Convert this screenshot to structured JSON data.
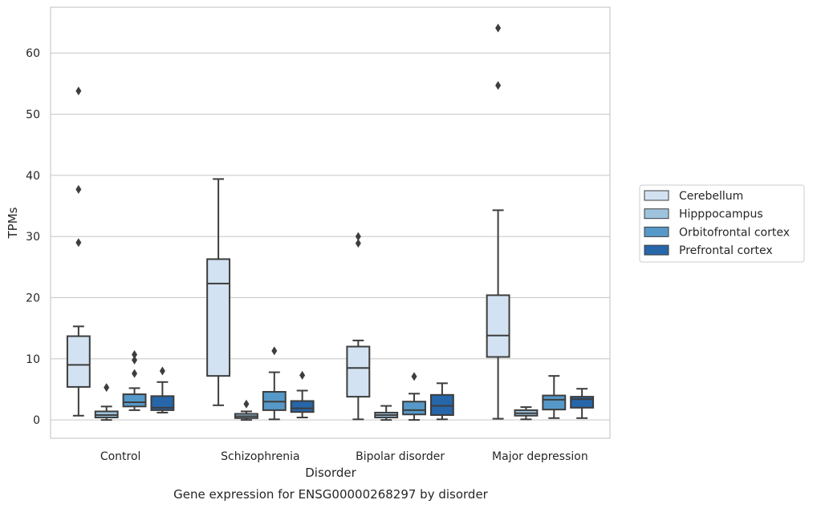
{
  "chart_data": {
    "type": "box",
    "xlabel": "Disorder",
    "ylabel": "TPMs",
    "caption": "Gene expression for ENSG00000268297 by disorder",
    "ylim": [
      -3,
      67.5
    ],
    "yticks": [
      0,
      10,
      20,
      30,
      40,
      50,
      60
    ],
    "grid": "horizontal",
    "legend_position": "right",
    "categories": [
      "Control",
      "Schizophrenia",
      "Bipolar disorder",
      "Major depression"
    ],
    "series": [
      {
        "name": "Cerebellum",
        "color": "#d2e2f2",
        "boxes": [
          {
            "whislo": 0.7,
            "q1": 5.4,
            "med": 9.0,
            "q3": 13.7,
            "whishi": 15.3,
            "fliers": [
              29.0,
              37.7,
              53.8
            ]
          },
          {
            "whislo": 2.4,
            "q1": 7.2,
            "med": 22.3,
            "q3": 26.3,
            "whishi": 39.4,
            "fliers": []
          },
          {
            "whislo": 0.1,
            "q1": 3.8,
            "med": 8.5,
            "q3": 12.0,
            "whishi": 13.0,
            "fliers": [
              28.9,
              30.0
            ]
          },
          {
            "whislo": 0.2,
            "q1": 10.3,
            "med": 13.8,
            "q3": 20.4,
            "whishi": 34.3,
            "fliers": [
              54.7,
              64.1
            ]
          }
        ]
      },
      {
        "name": "Hipppocampus",
        "color": "#9dc3dd",
        "boxes": [
          {
            "whislo": 0.0,
            "q1": 0.4,
            "med": 0.8,
            "q3": 1.4,
            "whishi": 2.2,
            "fliers": [
              5.3
            ]
          },
          {
            "whislo": 0.0,
            "q1": 0.3,
            "med": 0.6,
            "q3": 1.0,
            "whishi": 1.4,
            "fliers": [
              2.6
            ]
          },
          {
            "whislo": 0.0,
            "q1": 0.4,
            "med": 0.8,
            "q3": 1.2,
            "whishi": 2.3,
            "fliers": []
          },
          {
            "whislo": 0.1,
            "q1": 0.7,
            "med": 1.1,
            "q3": 1.6,
            "whishi": 2.1,
            "fliers": []
          }
        ]
      },
      {
        "name": "Orbitofrontal cortex",
        "color": "#5699c9",
        "boxes": [
          {
            "whislo": 1.6,
            "q1": 2.2,
            "med": 2.9,
            "q3": 4.2,
            "whishi": 5.2,
            "fliers": [
              7.6,
              9.8,
              10.7
            ]
          },
          {
            "whislo": 0.1,
            "q1": 1.6,
            "med": 3.0,
            "q3": 4.6,
            "whishi": 7.8,
            "fliers": [
              11.3
            ]
          },
          {
            "whislo": 0.0,
            "q1": 0.9,
            "med": 1.6,
            "q3": 3.0,
            "whishi": 4.3,
            "fliers": [
              7.1
            ]
          },
          {
            "whislo": 0.3,
            "q1": 1.7,
            "med": 3.3,
            "q3": 4.0,
            "whishi": 7.2,
            "fliers": []
          }
        ]
      },
      {
        "name": "Prefrontal cortex",
        "color": "#2666a9",
        "boxes": [
          {
            "whislo": 1.2,
            "q1": 1.6,
            "med": 2.0,
            "q3": 3.9,
            "whishi": 6.2,
            "fliers": [
              8.0
            ]
          },
          {
            "whislo": 0.4,
            "q1": 1.3,
            "med": 1.9,
            "q3": 3.1,
            "whishi": 4.8,
            "fliers": [
              7.3
            ]
          },
          {
            "whislo": 0.1,
            "q1": 0.8,
            "med": 2.3,
            "q3": 4.1,
            "whishi": 6.0,
            "fliers": []
          },
          {
            "whislo": 0.3,
            "q1": 2.0,
            "med": 3.4,
            "q3": 3.8,
            "whishi": 5.1,
            "fliers": []
          }
        ]
      }
    ]
  }
}
